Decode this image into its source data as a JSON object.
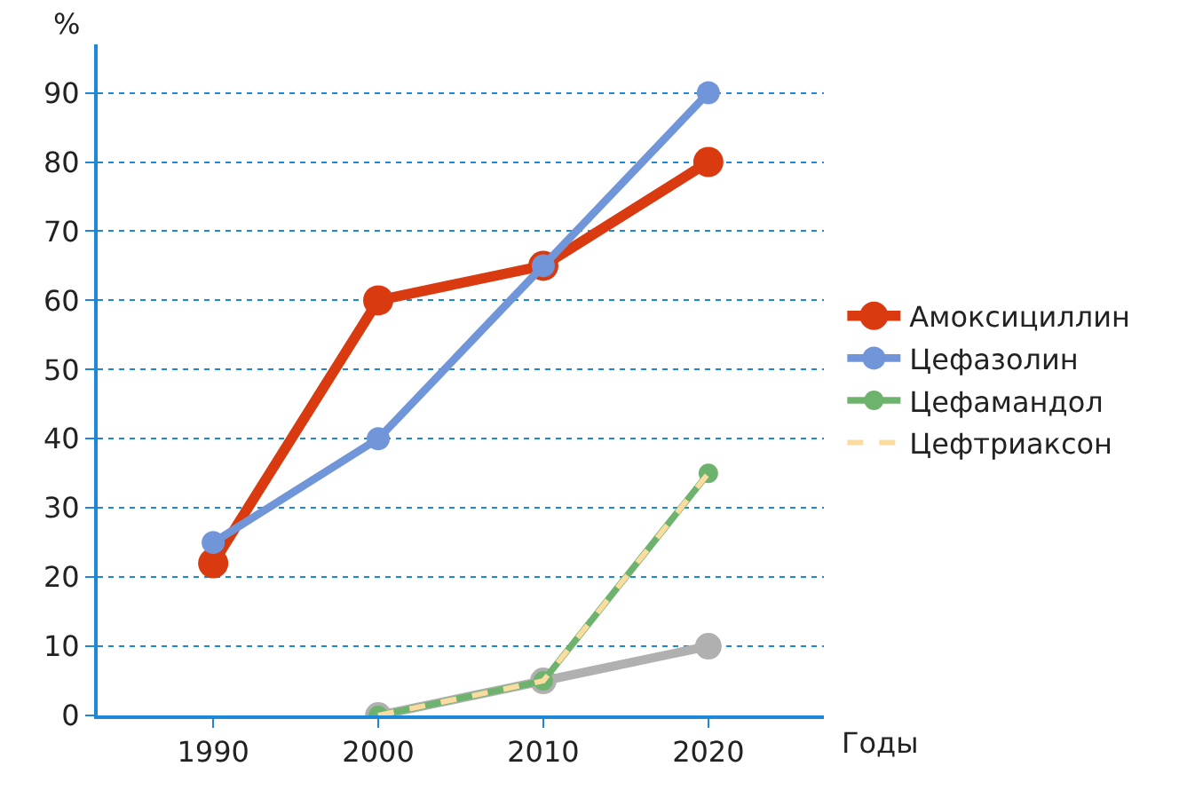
{
  "chart_data": {
    "type": "line",
    "ylabel": "%",
    "xlabel": "Годы",
    "x": [
      1990,
      2000,
      2010,
      2020
    ],
    "xlim": [
      1983,
      2027
    ],
    "xticks": [
      1990,
      2000,
      2010,
      2020
    ],
    "ylim": [
      0,
      97
    ],
    "yticks": [
      0,
      10,
      20,
      30,
      40,
      50,
      60,
      70,
      80,
      90
    ],
    "grid": "y",
    "legend": "right",
    "marker": "circle",
    "series": [
      {
        "name": "Амоксициллин",
        "color": "#d93a10",
        "values": [
          22,
          60,
          65,
          80
        ]
      },
      {
        "color": "#b0b0b0",
        "values": [
          null,
          0,
          5,
          10
        ]
      },
      {
        "name": "Цефазолин",
        "color": "#7095d8",
        "values": [
          25,
          40,
          65,
          90
        ]
      },
      {
        "name": "Цефамандол",
        "color": "#6db36d",
        "values": [
          null,
          0,
          5,
          35
        ]
      },
      {
        "name": "Цефтриаксон",
        "color": "#fbdca0",
        "values": [
          null,
          0,
          5,
          35
        ],
        "line_style": "dashed",
        "marker": "none"
      }
    ]
  }
}
